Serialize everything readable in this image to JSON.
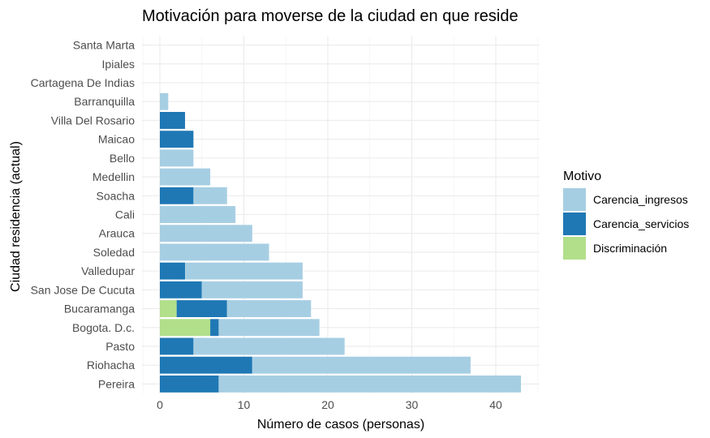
{
  "chart_data": {
    "type": "bar",
    "orientation": "horizontal",
    "stacked": true,
    "title": "Motivación para moverse de la ciudad en que reside",
    "xlabel": "Número de casos (personas)",
    "ylabel": "Ciudad residencia (actual)",
    "xlim": [
      0,
      44
    ],
    "xticks": [
      0,
      10,
      20,
      30,
      40
    ],
    "grid": true,
    "legend": {
      "title": "Motivo",
      "placement": "right"
    },
    "categories": [
      "Pereira",
      "Riohacha",
      "Pasto",
      "Bogota. D.c.",
      "Bucaramanga",
      "San Jose De Cucuta",
      "Valledupar",
      "Soledad",
      "Arauca",
      "Cali",
      "Soacha",
      "Medellin",
      "Bello",
      "Maicao",
      "Villa Del Rosario",
      "Barranquilla",
      "Cartagena De Indias",
      "Ipiales",
      "Santa Marta"
    ],
    "series": [
      {
        "name": "Discriminación",
        "color": "#b2df8a",
        "values": [
          0,
          0,
          0,
          6,
          2,
          0,
          0,
          0,
          0,
          0,
          0,
          0,
          0,
          0,
          0,
          0,
          0,
          0,
          0
        ]
      },
      {
        "name": "Carencia_servicios",
        "color": "#1f78b4",
        "values": [
          7,
          11,
          4,
          1,
          6,
          5,
          3,
          0,
          0,
          0,
          4,
          0,
          0,
          4,
          3,
          0,
          0,
          0,
          0
        ]
      },
      {
        "name": "Carencia_ingresos",
        "color": "#a6cee3",
        "values": [
          36,
          26,
          18,
          12,
          10,
          12,
          14,
          13,
          11,
          9,
          4,
          6,
          4,
          0,
          0,
          1,
          0,
          0,
          0
        ]
      }
    ],
    "legend_order": [
      "Carencia_ingresos",
      "Carencia_servicios",
      "Discriminación"
    ]
  }
}
